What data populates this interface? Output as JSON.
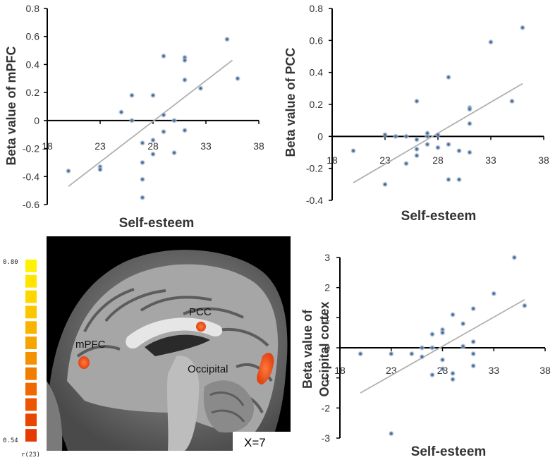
{
  "chart_data": [
    {
      "type": "scatter",
      "xlabel": "Self-esteem",
      "ylabel": "Beta value of mPFC",
      "xlim": [
        18,
        38
      ],
      "ylim": [
        -0.6,
        0.8
      ],
      "xticks": [
        "18",
        "23",
        "28",
        "33",
        "38"
      ],
      "yticks": [
        "-0.6",
        "-0.4",
        "-0.2",
        "0",
        "0.2",
        "0.4",
        "0.6",
        "0.8"
      ],
      "trend": [
        [
          20,
          -0.47
        ],
        [
          35.5,
          0.43
        ]
      ],
      "points": [
        [
          20,
          -0.36
        ],
        [
          23,
          -0.33
        ],
        [
          23,
          -0.35
        ],
        [
          25,
          0.06
        ],
        [
          26,
          0.18
        ],
        [
          26,
          0
        ],
        [
          27,
          -0.16
        ],
        [
          27,
          -0.3
        ],
        [
          27,
          -0.42
        ],
        [
          27,
          -0.55
        ],
        [
          28,
          0.18
        ],
        [
          28,
          -0.14
        ],
        [
          28,
          -0.24
        ],
        [
          29,
          0.46
        ],
        [
          29,
          0.04
        ],
        [
          29,
          -0.08
        ],
        [
          30,
          0
        ],
        [
          30,
          -0.23
        ],
        [
          31,
          0.45
        ],
        [
          31,
          0.43
        ],
        [
          31,
          0.29
        ],
        [
          31,
          -0.07
        ],
        [
          32.5,
          0.23
        ],
        [
          35,
          0.58
        ],
        [
          36,
          0.3
        ]
      ]
    },
    {
      "type": "scatter",
      "xlabel": "Self-esteem",
      "ylabel": "Beta value of PCC",
      "xlim": [
        18,
        38
      ],
      "ylim": [
        -0.4,
        0.8
      ],
      "xticks": [
        "18",
        "23",
        "28",
        "33",
        "38"
      ],
      "yticks": [
        "-0.4",
        "-0.2",
        "0",
        "0.2",
        "0.4",
        "0.6",
        "0.8"
      ],
      "trend": [
        [
          20,
          -0.29
        ],
        [
          36,
          0.33
        ]
      ],
      "points": [
        [
          20,
          -0.09
        ],
        [
          23,
          0.01
        ],
        [
          23,
          -0.3
        ],
        [
          24,
          0
        ],
        [
          25,
          0
        ],
        [
          25,
          -0.17
        ],
        [
          26,
          0.22
        ],
        [
          26,
          -0.02
        ],
        [
          26,
          -0.08
        ],
        [
          26,
          -0.12
        ],
        [
          27,
          0
        ],
        [
          27,
          0.02
        ],
        [
          27,
          -0.05
        ],
        [
          28,
          0.01
        ],
        [
          28,
          -0.07
        ],
        [
          29,
          0.37
        ],
        [
          29,
          -0.05
        ],
        [
          29,
          -0.27
        ],
        [
          30,
          -0.09
        ],
        [
          30,
          -0.27
        ],
        [
          31,
          0.18
        ],
        [
          31,
          0.17
        ],
        [
          31,
          0.08
        ],
        [
          31,
          -0.1
        ],
        [
          33,
          0.59
        ],
        [
          35,
          0.22
        ],
        [
          36,
          0.68
        ]
      ]
    },
    {
      "type": "scatter",
      "xlabel": "Self-esteem",
      "ylabel": "Beta value of Occipital cortex",
      "ylabel_lines": [
        "Beta value of",
        "Occipital cortex"
      ],
      "xlim": [
        18,
        38
      ],
      "ylim": [
        -3,
        3
      ],
      "xticks": [
        "18",
        "23",
        "28",
        "33",
        "38"
      ],
      "yticks": [
        "-3",
        "-2",
        "-1",
        "0",
        "1",
        "2",
        "3"
      ],
      "trend": [
        [
          20,
          -1.5
        ],
        [
          36,
          1.6
        ]
      ],
      "points": [
        [
          20,
          -0.2
        ],
        [
          23,
          -0.2
        ],
        [
          23,
          -2.85
        ],
        [
          25,
          -0.2
        ],
        [
          26,
          0
        ],
        [
          26,
          -0.3
        ],
        [
          27,
          0
        ],
        [
          27,
          0.45
        ],
        [
          27,
          -0.9
        ],
        [
          28,
          0.6
        ],
        [
          28,
          0.5
        ],
        [
          28,
          -0.4
        ],
        [
          28,
          -0.7
        ],
        [
          29,
          -0.85
        ],
        [
          29,
          -1.05
        ],
        [
          29,
          1.1
        ],
        [
          30,
          0.05
        ],
        [
          30,
          0.8
        ],
        [
          31,
          1.3
        ],
        [
          31,
          0.2
        ],
        [
          31,
          -0.2
        ],
        [
          31,
          -0.6
        ],
        [
          33,
          1.8
        ],
        [
          35,
          3.0
        ],
        [
          36,
          1.4
        ]
      ]
    }
  ],
  "brain_panel": {
    "labels": {
      "mpfc": "mPFC",
      "pcc": "PCC",
      "occipital": "Occipital"
    },
    "slice_label": "X=7",
    "colorbar": {
      "max_label": "0.80",
      "min_label": "0.54",
      "stat_label": "r(23)",
      "colors": [
        "#fff200",
        "#ffe400",
        "#ffd700",
        "#fcc600",
        "#f9b400",
        "#f7a300",
        "#f59000",
        "#f27c00",
        "#ef6800",
        "#ec5400",
        "#e94400",
        "#e63a00"
      ]
    },
    "blob_color": "#ff5a1a"
  }
}
